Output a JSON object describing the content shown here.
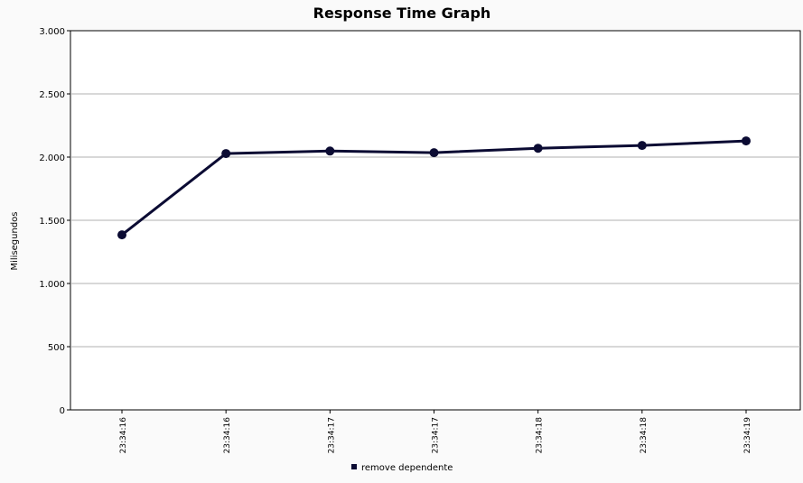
{
  "chart_data": {
    "type": "line",
    "title": "Response Time Graph",
    "xlabel": "",
    "ylabel": "Milisegundos",
    "ylim": [
      0,
      3000
    ],
    "yticks": [
      0,
      500,
      1000,
      1500,
      2000,
      2500,
      3000
    ],
    "ytick_labels": [
      "0",
      "500",
      "1.000",
      "1.500",
      "2.000",
      "2.500",
      "3.000"
    ],
    "categories": [
      "23:34:16",
      "23:34:16",
      "23:34:17",
      "23:34:17",
      "23:34:18",
      "23:34:18",
      "23:34:19"
    ],
    "grid": "horizontal",
    "legend_position": "bottom",
    "series": [
      {
        "name": "remove dependente",
        "color": "#0b0b33",
        "values": [
          1385,
          2028,
          2048,
          2035,
          2070,
          2092,
          2128
        ]
      }
    ]
  }
}
